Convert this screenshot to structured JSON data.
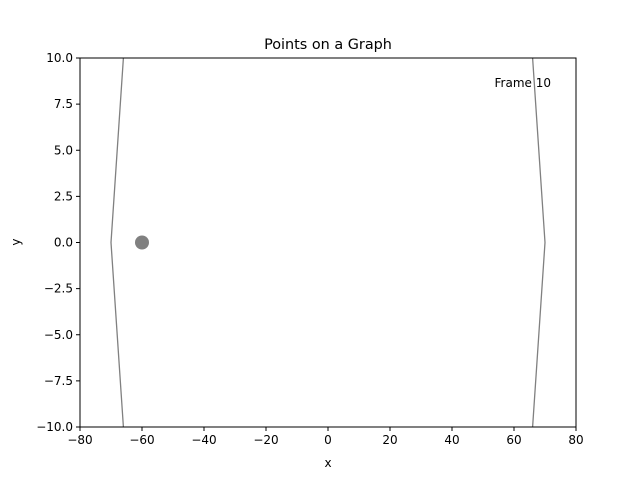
{
  "chart_data": {
    "type": "line",
    "title": "Points on a Graph",
    "xlabel": "x",
    "ylabel": "y",
    "xlim": [
      -80,
      80
    ],
    "ylim": [
      -10,
      10
    ],
    "xticks": [
      -80,
      -60,
      -40,
      -20,
      0,
      20,
      40,
      60,
      80
    ],
    "xtick_labels": [
      "−80",
      "−60",
      "−40",
      "−20",
      "0",
      "20",
      "40",
      "60",
      "80"
    ],
    "yticks": [
      10,
      7.5,
      5,
      2.5,
      0,
      -2.5,
      -5,
      -7.5,
      -10
    ],
    "ytick_labels": [
      "10.0",
      "7.5",
      "5.0",
      "2.5",
      "0.0",
      "−2.5",
      "−5.0",
      "−7.5",
      "−10.0"
    ],
    "grid": false,
    "annotation": "Frame 10",
    "series": [
      {
        "kind": "line",
        "color": "#808080",
        "x": [
          -66,
          -70,
          -66
        ],
        "y": [
          10,
          0,
          -10
        ]
      },
      {
        "kind": "line",
        "color": "#808080",
        "x": [
          66,
          70,
          66
        ],
        "y": [
          10,
          0,
          -10
        ]
      },
      {
        "kind": "point",
        "color": "#808080",
        "x": [
          -60
        ],
        "y": [
          0
        ]
      }
    ]
  }
}
